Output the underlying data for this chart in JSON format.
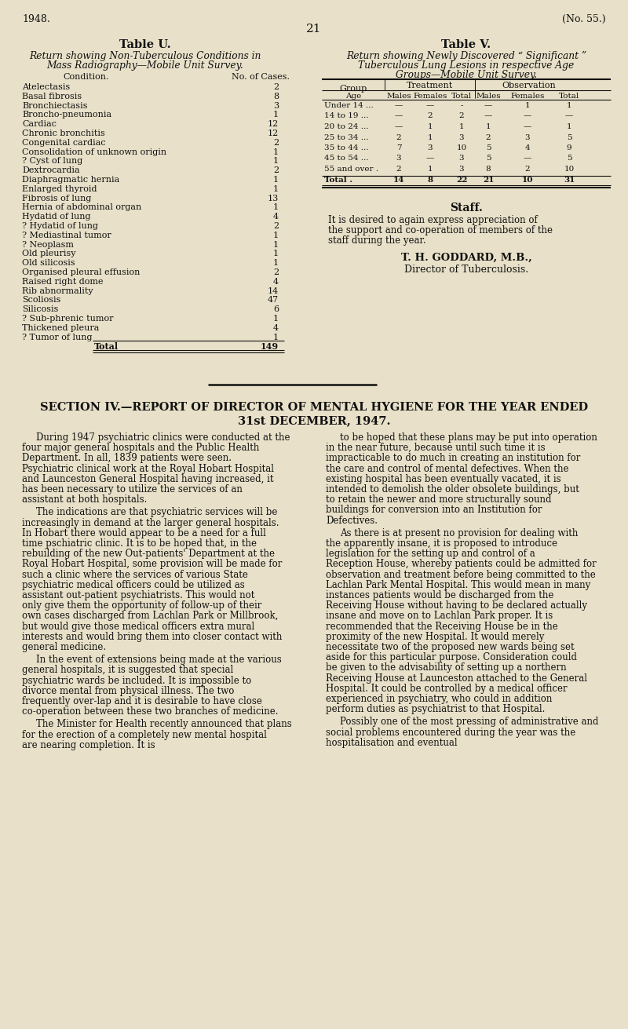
{
  "bg_color": "#e8e0c8",
  "text_color": "#111111",
  "page_year": "1948.",
  "page_num": "21",
  "page_ref": "(No. 55.)",
  "table_u_title": "Table U.",
  "table_u_subtitle_1": "Return showing Non-Tuberculous Conditions in",
  "table_u_subtitle_2": "Mass Radiography—Mobile Unit Survey.",
  "table_u_col1": "Condition.",
  "table_u_col2": "No. of Cases.",
  "table_u_rows": [
    [
      "Atelectasis",
      "2"
    ],
    [
      "Basal fibrosis",
      "8"
    ],
    [
      "Bronchiectasis",
      "3"
    ],
    [
      "Broncho-pneumonia",
      "1"
    ],
    [
      "Cardiac",
      "12"
    ],
    [
      "Chronic bronchitis",
      "12"
    ],
    [
      "Congenital cardiac",
      "2"
    ],
    [
      "Consolidation of unknown origin",
      "1"
    ],
    [
      "? Cyst of lung",
      "1"
    ],
    [
      "Dextrocardia",
      "2"
    ],
    [
      "Diaphragmatic hernia",
      "1"
    ],
    [
      "Enlarged thyroid",
      "1"
    ],
    [
      "Fibrosis of lung",
      "13"
    ],
    [
      "Hernia of abdominal organ",
      "1"
    ],
    [
      "Hydatid of lung",
      "4"
    ],
    [
      "? Hydatid of lung",
      "2"
    ],
    [
      "? Mediastinal tumor",
      "1"
    ],
    [
      "? Neoplasm",
      "1"
    ],
    [
      "Old pleurisy",
      "1"
    ],
    [
      "Old silicosis",
      "1"
    ],
    [
      "Organised pleural effusion",
      "2"
    ],
    [
      "Raised right dome",
      "4"
    ],
    [
      "Rib abnormality",
      "14"
    ],
    [
      "Scoliosis",
      "47"
    ],
    [
      "Silicosis",
      "6"
    ],
    [
      "? Sub-phrenic tumor",
      "1"
    ],
    [
      "Thickened pleura",
      "4"
    ],
    [
      "? Tumor of lung",
      "1"
    ],
    [
      "Total",
      "149"
    ]
  ],
  "table_v_title": "Table V.",
  "table_v_subtitle_1": "Return showing Newly Discovered “ Significant ”",
  "table_v_subtitle_2": "Tuberculous Lung Lesions in respective Age",
  "table_v_subtitle_3": "Groups—Mobile Unit Survey.",
  "table_v_rows": [
    [
      "Under 14 ...",
      "—",
      "—",
      "-",
      "—",
      "1",
      "1"
    ],
    [
      "14 to 19 ...",
      "—",
      "2",
      "2",
      "—",
      "—",
      "—"
    ],
    [
      "20 to 24 ...",
      "—",
      "1",
      "1",
      "1",
      "—",
      "1"
    ],
    [
      "25 to 34 ...",
      "2",
      "1",
      "3",
      "2",
      "3",
      "5"
    ],
    [
      "35 to 44 ...",
      "7",
      "3",
      "10",
      "5",
      "4",
      "9"
    ],
    [
      "45 to 54 ...",
      "3",
      "—",
      "3",
      "5",
      "—",
      "5"
    ],
    [
      "55 and over .",
      "2",
      "1",
      "3",
      "8",
      "2",
      "10"
    ],
    [
      "Total .",
      "14",
      "8",
      "22",
      "21",
      "10",
      "31"
    ]
  ],
  "staff_heading": "Staff.",
  "staff_text_1": "It is desired to again express appreciation of",
  "staff_text_2": "the support and co-operation of members of the",
  "staff_text_3": "staff during the year.",
  "staff_name": "T. H. GODDARD, M.B.,",
  "staff_title": "Director of Tuberculosis.",
  "section_heading_1": "SECTION IV.—REPORT OF DIRECTOR OF MENTAL HYGIENE FOR THE YEAR ENDED",
  "section_heading_2": "31st DECEMBER, 1947.",
  "body_left_paragraphs": [
    "During 1947 psychiatric clinics were conducted at the four major general hospitals and the Public Health Department.  In all, 1839 patients were seen.  Psychiatric clinical work at the Royal Hobart Hospital and Launceston General Hospital having increased, it has been necessary to utilize the services of an assistant at both hospitals.",
    "The indications are that psychiatric services will be increasingly in demand at the larger general hospitals.  In Hobart there would appear to be a need for a full time pschiatric clinic.  It is to be hoped that, in the rebuilding of the new Out-patients' Department at the Royal Hobart Hospital, some provision will be made for such a clinic where the services of various State psychiatric medical officers could be utilized as assistant out-patient psychiatrists.  This would not only give them the opportunity of follow-up of their own cases discharged from Lachlan Park or Millbrook, but would give those medical officers extra mural interests and would bring them into closer contact with general medicine.",
    "In the event of extensions being made at the various general hospitals, it is suggested that special psychiatric wards be included.  It is impossible to divorce mental from physical illness. The two frequently over-lap and it is desirable to have close co-operation between these two branches of medicine.",
    "The Minister for Health recently announced that plans for the erection of a completely new mental hospital are nearing completion.  It is"
  ],
  "body_right_paragraphs": [
    "to be hoped that these plans may be put into operation in the near future, because until such time it is impracticable to do much in creating an institution for the care and control of mental defectives.  When the existing hospital has been eventually vacated, it is intended to demolish the older obsolete buildings, but to retain the newer and more structurally sound buildings for conversion into an Institution for Defectives.",
    "As there is at present no provision for dealing with the apparently insane, it is proposed to introduce legislation for the setting up and control of a Reception House, whereby patients could be admitted for observation and treatment before being committed to the Lachlan Park Mental Hospital.  This would mean in many instances patients would be discharged from the Receiving House without having to be declared actually insane and move on to Lachlan Park proper.  It is recommended that the Receiving House be in the proximity of the new Hospital. It would merely necessitate two of the proposed new wards being set aside for this particular purpose.  Consideration could be given to the advisability of setting up a northern Receiving House at Launceston attached to the General Hospital.  It could be controlled by a medical officer experienced in psychiatry, who could in addition perform duties as psychiatrist to that Hospital.",
    "Possibly one of the most pressing of administrative and social problems encountered during the year was the hospitalisation and eventual"
  ]
}
